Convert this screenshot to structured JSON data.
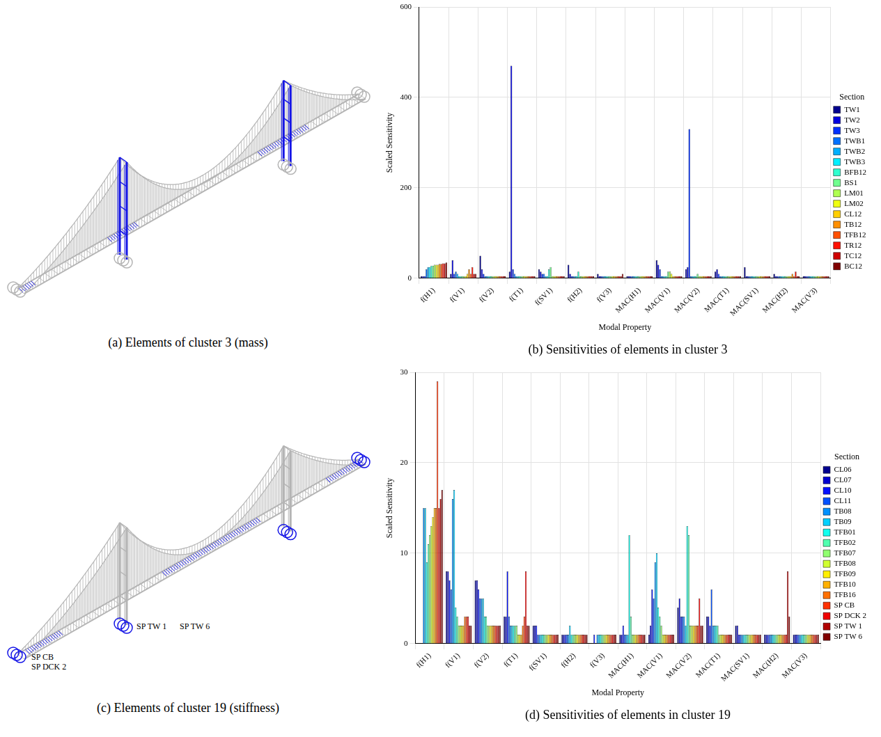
{
  "chart_data": [
    {
      "type": "bar",
      "title": "(b) Sensitivities of elements in cluster 3",
      "xlabel": "Modal Property",
      "ylabel": "Scaled Sensitivity",
      "legend_title": "Section",
      "categories": [
        "f(H1)",
        "f(V1)",
        "f(V2)",
        "f(T1)",
        "f(SV1)",
        "f(H2)",
        "f(V3)",
        "MAC(H1)",
        "MAC(V1)",
        "MAC(V2)",
        "MAC(T1)",
        "MAC(SV1)",
        "MAC(H2)",
        "MAC(V3)"
      ],
      "series": [
        {
          "name": "TW1",
          "color": "#00008f",
          "values": [
            5,
            10,
            50,
            15,
            20,
            30,
            10,
            5,
            40,
            20,
            15,
            25,
            10,
            5
          ]
        },
        {
          "name": "TW2",
          "color": "#0000df",
          "values": [
            5,
            40,
            20,
            470,
            15,
            10,
            5,
            5,
            30,
            25,
            20,
            5,
            5,
            5
          ]
        },
        {
          "name": "TW3",
          "color": "#0030ff",
          "values": [
            5,
            10,
            10,
            20,
            10,
            5,
            5,
            5,
            20,
            330,
            10,
            5,
            5,
            5
          ]
        },
        {
          "name": "TWB1",
          "color": "#0070ff",
          "values": [
            20,
            15,
            5,
            10,
            10,
            5,
            5,
            5,
            5,
            5,
            5,
            5,
            5,
            5
          ]
        },
        {
          "name": "TWB2",
          "color": "#00afff",
          "values": [
            25,
            10,
            5,
            5,
            5,
            5,
            5,
            5,
            5,
            5,
            5,
            5,
            5,
            5
          ]
        },
        {
          "name": "TWB3",
          "color": "#00efff",
          "values": [
            25,
            5,
            5,
            5,
            5,
            5,
            5,
            5,
            5,
            5,
            5,
            5,
            5,
            5
          ]
        },
        {
          "name": "BFB12",
          "color": "#30ffcf",
          "values": [
            28,
            5,
            5,
            5,
            20,
            15,
            5,
            5,
            5,
            5,
            5,
            5,
            5,
            5
          ]
        },
        {
          "name": "BS1",
          "color": "#70ff8f",
          "values": [
            28,
            5,
            5,
            5,
            25,
            5,
            5,
            5,
            15,
            10,
            5,
            5,
            5,
            5
          ]
        },
        {
          "name": "LM01",
          "color": "#afff50",
          "values": [
            30,
            5,
            5,
            5,
            5,
            5,
            5,
            5,
            15,
            5,
            5,
            5,
            5,
            5
          ]
        },
        {
          "name": "LM02",
          "color": "#efff10",
          "values": [
            30,
            5,
            5,
            5,
            5,
            5,
            5,
            5,
            10,
            5,
            5,
            5,
            5,
            5
          ]
        },
        {
          "name": "CL12",
          "color": "#ffcf00",
          "values": [
            30,
            10,
            5,
            5,
            5,
            5,
            5,
            5,
            5,
            5,
            5,
            5,
            5,
            5
          ]
        },
        {
          "name": "TB12",
          "color": "#ff8f00",
          "values": [
            32,
            20,
            5,
            5,
            5,
            5,
            5,
            5,
            5,
            5,
            5,
            5,
            10,
            5
          ]
        },
        {
          "name": "TFB12",
          "color": "#ff5000",
          "values": [
            32,
            10,
            5,
            5,
            5,
            5,
            5,
            5,
            5,
            5,
            5,
            5,
            5,
            5
          ]
        },
        {
          "name": "TR12",
          "color": "#ff1000",
          "values": [
            33,
            25,
            5,
            5,
            5,
            5,
            5,
            5,
            5,
            5,
            5,
            5,
            15,
            5
          ]
        },
        {
          "name": "TC12",
          "color": "#cf0000",
          "values": [
            33,
            10,
            5,
            5,
            5,
            5,
            5,
            5,
            5,
            5,
            5,
            5,
            5,
            5
          ]
        },
        {
          "name": "BC12",
          "color": "#800000",
          "values": [
            35,
            10,
            5,
            5,
            5,
            5,
            10,
            5,
            5,
            5,
            5,
            5,
            5,
            5
          ]
        }
      ],
      "ylim": [
        0,
        600
      ],
      "yticks": [
        0,
        200,
        400,
        600
      ],
      "grid": true,
      "legend": "right"
    },
    {
      "type": "bar",
      "title": "(d) Sensitivities of elements in cluster 19",
      "xlabel": "Modal Property",
      "ylabel": "Scaled Sensitivity",
      "legend_title": "Section",
      "categories": [
        "f(H1)",
        "f(V1)",
        "f(V2)",
        "f(T1)",
        "f(SV1)",
        "f(H2)",
        "f(V3)",
        "MAC(H1)",
        "MAC(V1)",
        "MAC(V2)",
        "MAC(T1)",
        "MAC(SV1)",
        "MAC(H2)",
        "MAC(V3)"
      ],
      "series": [
        {
          "name": "CL06",
          "color": "#00008f",
          "values": [
            0,
            8,
            7,
            3,
            2,
            1,
            0,
            1,
            1,
            4,
            3,
            2,
            1,
            1
          ]
        },
        {
          "name": "CL07",
          "color": "#0000d0",
          "values": [
            0,
            8,
            7,
            3,
            2,
            1,
            0,
            1,
            2,
            5,
            3,
            2,
            1,
            1
          ]
        },
        {
          "name": "CL10",
          "color": "#0010ff",
          "values": [
            0,
            7,
            6,
            8,
            2,
            1,
            1,
            2,
            6,
            3,
            2,
            1,
            1,
            1
          ]
        },
        {
          "name": "CL11",
          "color": "#0050ff",
          "values": [
            0,
            6,
            5,
            3,
            1,
            1,
            0,
            1,
            5,
            3,
            6,
            1,
            1,
            1
          ]
        },
        {
          "name": "TB08",
          "color": "#0090ff",
          "values": [
            15,
            16,
            5,
            2,
            1,
            1,
            1,
            1,
            9,
            3,
            2,
            1,
            1,
            1
          ]
        },
        {
          "name": "TB09",
          "color": "#00d0ff",
          "values": [
            15,
            17,
            5,
            2,
            1,
            2,
            1,
            1,
            10,
            2,
            2,
            1,
            1,
            1
          ]
        },
        {
          "name": "TFB01",
          "color": "#10ffef",
          "values": [
            9,
            4,
            3,
            2,
            1,
            1,
            1,
            12,
            4,
            13,
            2,
            1,
            1,
            1
          ]
        },
        {
          "name": "TFB02",
          "color": "#50ffaf",
          "values": [
            11,
            3,
            3,
            2,
            1,
            1,
            1,
            3,
            3,
            12,
            2,
            1,
            1,
            1
          ]
        },
        {
          "name": "TFB07",
          "color": "#90ff70",
          "values": [
            12,
            2,
            2,
            2,
            1,
            1,
            1,
            1,
            2,
            2,
            1,
            1,
            1,
            1
          ]
        },
        {
          "name": "TFB08",
          "color": "#d0ff30",
          "values": [
            13,
            2,
            2,
            1,
            1,
            1,
            1,
            1,
            1,
            2,
            1,
            1,
            1,
            1
          ]
        },
        {
          "name": "TFB09",
          "color": "#ffef00",
          "values": [
            14,
            2,
            2,
            1,
            1,
            1,
            1,
            1,
            1,
            2,
            1,
            1,
            1,
            1
          ]
        },
        {
          "name": "TFB10",
          "color": "#ffb000",
          "values": [
            15,
            2,
            2,
            1,
            1,
            1,
            1,
            1,
            1,
            2,
            1,
            1,
            1,
            1
          ]
        },
        {
          "name": "TFB16",
          "color": "#ff7000",
          "values": [
            15,
            3,
            2,
            2,
            1,
            1,
            1,
            1,
            1,
            2,
            1,
            1,
            1,
            1
          ]
        },
        {
          "name": "SP CB",
          "color": "#ff3000",
          "values": [
            29,
            3,
            2,
            3,
            1,
            1,
            1,
            1,
            1,
            2,
            1,
            1,
            1,
            1
          ]
        },
        {
          "name": "SP DCK 2",
          "color": "#ef0000",
          "values": [
            15,
            3,
            2,
            8,
            1,
            1,
            1,
            1,
            1,
            5,
            1,
            1,
            1,
            1
          ]
        },
        {
          "name": "SP TW 1",
          "color": "#b00000",
          "values": [
            16,
            2,
            2,
            2,
            1,
            1,
            1,
            1,
            1,
            2,
            1,
            1,
            8,
            1
          ]
        },
        {
          "name": "SP TW 6",
          "color": "#800000",
          "values": [
            17,
            2,
            2,
            2,
            1,
            1,
            1,
            1,
            1,
            2,
            1,
            1,
            3,
            1
          ]
        }
      ],
      "ylim": [
        0,
        30
      ],
      "yticks": [
        0,
        10,
        20,
        30
      ],
      "grid": true,
      "legend": "right"
    }
  ],
  "diagrams": [
    {
      "caption": "(a) Elements of cluster 3 (mass)"
    },
    {
      "caption": "(c) Elements of cluster 19 (stiffness)",
      "support_labels": {
        "end": [
          "SP CB",
          "SP DCK 2"
        ],
        "tower": [
          "SP TW 1",
          "SP TW 6"
        ]
      }
    }
  ]
}
